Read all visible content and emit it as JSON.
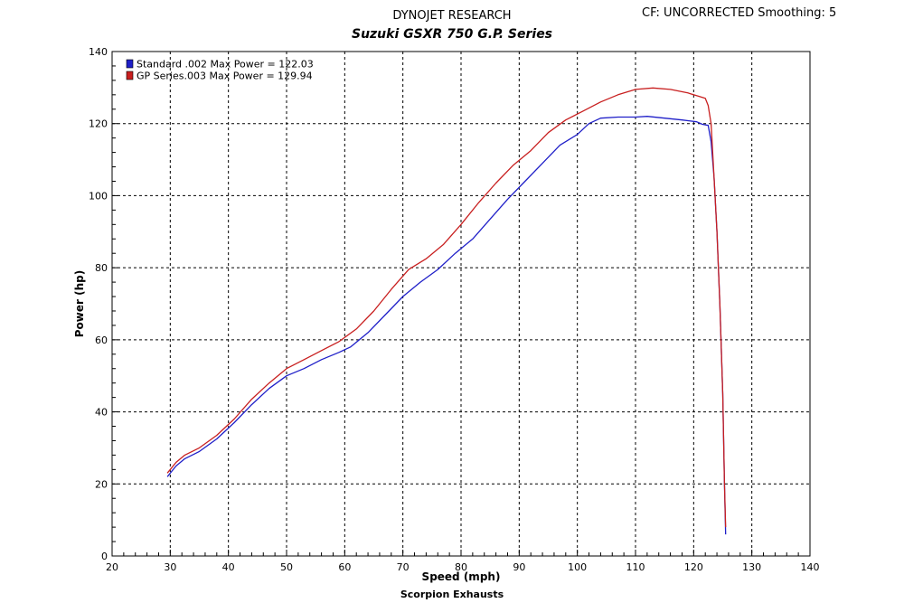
{
  "header": {
    "organization": "DYNOJET RESEARCH",
    "correction": "CF: UNCORRECTED  Smoothing: 5"
  },
  "chart_data": {
    "type": "line",
    "title": "Suzuki GSXR 750 G.P. Series",
    "xlabel": "Speed (mph)",
    "ylabel": "Power (hp)",
    "footer": "Scorpion Exhausts",
    "xlim": [
      20,
      140
    ],
    "ylim": [
      0,
      140
    ],
    "xticks": [
      20,
      30,
      40,
      50,
      60,
      70,
      80,
      90,
      100,
      110,
      120,
      130,
      140
    ],
    "yticks": [
      0,
      20,
      40,
      60,
      80,
      100,
      120,
      140
    ],
    "grid": true,
    "legend_position": "top-left",
    "series": [
      {
        "name": "Standard .002 Max Power = 122.03",
        "color": "#1f1fc8",
        "points": [
          [
            29.5,
            22
          ],
          [
            31,
            25
          ],
          [
            32.5,
            27
          ],
          [
            35,
            29
          ],
          [
            38,
            32.5
          ],
          [
            41,
            37
          ],
          [
            44,
            42
          ],
          [
            47,
            46.5
          ],
          [
            50,
            50
          ],
          [
            53,
            52
          ],
          [
            56,
            54.5
          ],
          [
            59,
            56.5
          ],
          [
            61,
            58
          ],
          [
            64,
            62
          ],
          [
            67,
            67
          ],
          [
            70,
            72
          ],
          [
            73,
            76
          ],
          [
            76,
            79.5
          ],
          [
            79,
            84
          ],
          [
            82,
            88
          ],
          [
            85,
            93.5
          ],
          [
            88,
            99
          ],
          [
            91,
            104
          ],
          [
            94,
            109
          ],
          [
            97,
            114
          ],
          [
            100,
            117
          ],
          [
            102,
            120
          ],
          [
            104,
            121.5
          ],
          [
            107,
            121.8
          ],
          [
            110,
            121.8
          ],
          [
            112,
            122
          ],
          [
            115,
            121.5
          ],
          [
            118,
            121
          ],
          [
            120.5,
            120.5
          ],
          [
            121.5,
            119.8
          ],
          [
            122.5,
            119.5
          ],
          [
            123,
            115
          ],
          [
            123.5,
            105
          ],
          [
            124,
            90
          ],
          [
            124.5,
            70
          ],
          [
            125,
            45
          ],
          [
            125.3,
            20
          ],
          [
            125.5,
            6
          ]
        ]
      },
      {
        "name": "GP Series.003 Max Power = 129.94",
        "color": "#c81f1f",
        "points": [
          [
            29.5,
            23
          ],
          [
            31,
            26
          ],
          [
            32.5,
            28
          ],
          [
            35,
            30
          ],
          [
            38,
            33.5
          ],
          [
            41,
            38
          ],
          [
            44,
            43.5
          ],
          [
            47,
            48
          ],
          [
            50,
            52
          ],
          [
            53,
            54.5
          ],
          [
            56,
            57
          ],
          [
            59,
            59.5
          ],
          [
            62,
            63
          ],
          [
            65,
            68
          ],
          [
            68,
            74
          ],
          [
            71,
            79.5
          ],
          [
            74,
            82.5
          ],
          [
            77,
            86.5
          ],
          [
            80,
            92
          ],
          [
            83,
            98
          ],
          [
            86,
            103.5
          ],
          [
            89,
            108.5
          ],
          [
            92,
            112.5
          ],
          [
            95,
            117.5
          ],
          [
            98,
            121
          ],
          [
            101,
            123.5
          ],
          [
            104,
            126
          ],
          [
            107,
            128
          ],
          [
            110,
            129.5
          ],
          [
            113,
            129.9
          ],
          [
            116,
            129.5
          ],
          [
            119,
            128.5
          ],
          [
            121,
            127.5
          ],
          [
            122,
            127
          ],
          [
            122.5,
            125
          ],
          [
            123,
            120
          ],
          [
            123.5,
            105
          ],
          [
            124,
            90
          ],
          [
            124.5,
            70
          ],
          [
            125,
            45
          ],
          [
            125.3,
            20
          ],
          [
            125.5,
            8
          ]
        ]
      }
    ]
  }
}
